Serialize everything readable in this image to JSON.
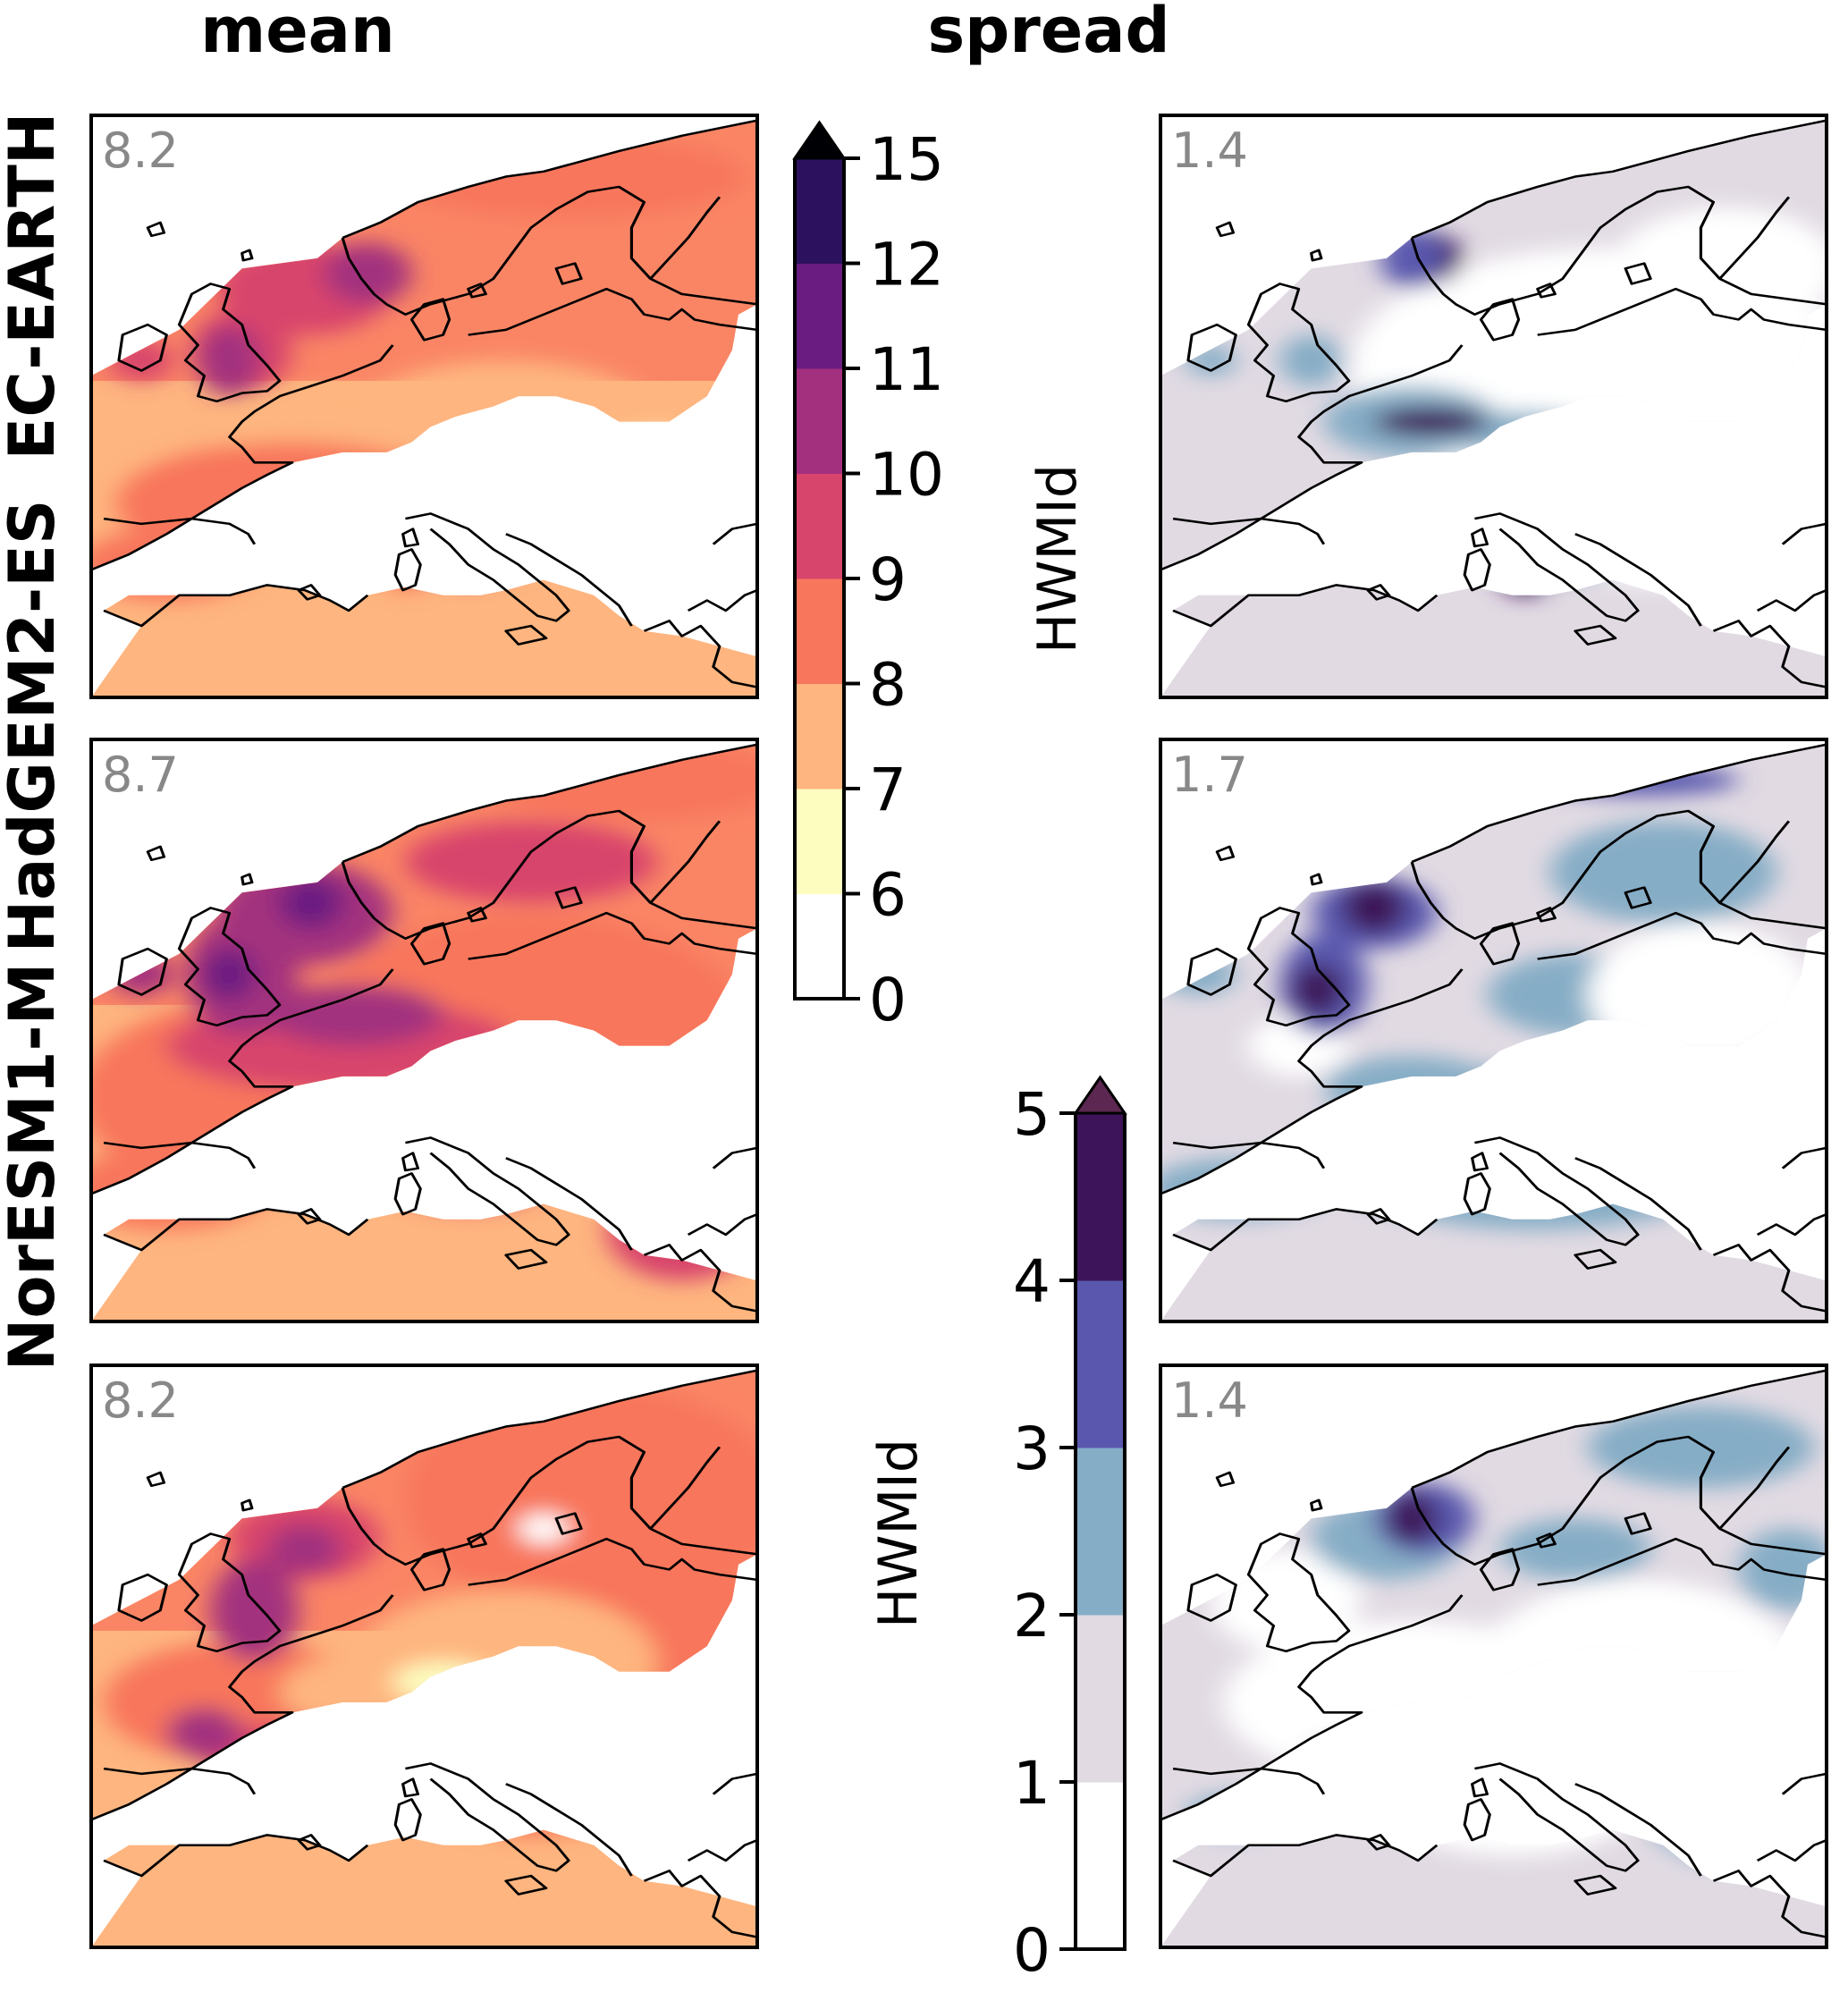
{
  "column_titles": [
    "mean",
    "spread"
  ],
  "row_labels": [
    "EC-EARTH",
    "HadGEM2-ES",
    "NorESM1-M"
  ],
  "chart_data": [
    {
      "type": "heatmap",
      "title": "mean",
      "panels": [
        {
          "model": "EC-EARTH",
          "domain_value": "8.2"
        },
        {
          "model": "HadGEM2-ES",
          "domain_value": "8.7"
        },
        {
          "model": "NorESM1-M",
          "domain_value": "8.2"
        }
      ],
      "colorbar": {
        "label": "HWMId",
        "boundaries": [
          0,
          6,
          7,
          8,
          9,
          10,
          11,
          12,
          15
        ],
        "tick_labels": [
          "0",
          "6",
          "7",
          "8",
          "9",
          "10",
          "11",
          "12",
          "15"
        ],
        "colors": [
          "#ffffff",
          "#fcfdbf",
          "#feb57f",
          "#f8765c",
          "#d8456c",
          "#a3307e",
          "#6a1c81",
          "#2c115f"
        ],
        "extend_color": "#000004",
        "extend": "max"
      }
    },
    {
      "type": "heatmap",
      "title": "spread",
      "panels": [
        {
          "model": "EC-EARTH",
          "domain_value": "1.4"
        },
        {
          "model": "HadGEM2-ES",
          "domain_value": "1.7"
        },
        {
          "model": "NorESM1-M",
          "domain_value": "1.4"
        }
      ],
      "colorbar": {
        "label": "HWMId",
        "boundaries": [
          0,
          1,
          2,
          3,
          4,
          5
        ],
        "tick_labels": [
          "0",
          "1",
          "2",
          "3",
          "4",
          "5"
        ],
        "colors": [
          "#ffffff",
          "#e1dae3",
          "#86adc6",
          "#5a58ae",
          "#3d1459"
        ],
        "extend_color": "#5c2750",
        "extend": "max"
      }
    }
  ],
  "colors": {
    "coastline": "#000000",
    "stat_text": "#888888",
    "mean_background": "#feb57f",
    "spread_background": "#e1dae3"
  }
}
